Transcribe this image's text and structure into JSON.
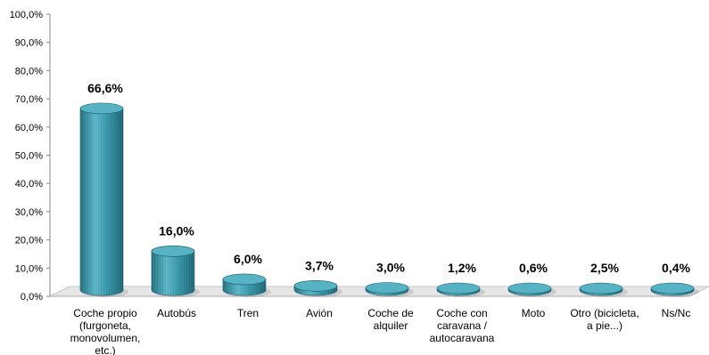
{
  "chart_data": {
    "type": "bar",
    "title": "",
    "xlabel": "",
    "ylabel": "",
    "ylim": [
      0,
      100
    ],
    "yticks": [
      "0,0%",
      "10,0%",
      "20,0%",
      "30,0%",
      "40,0%",
      "50,0%",
      "60,0%",
      "70,0%",
      "80,0%",
      "90,0%",
      "100,0%"
    ],
    "categories": [
      [
        "Coche propio",
        "(furgoneta,",
        "monovolumen,",
        "etc.)"
      ],
      [
        "Autobús"
      ],
      [
        "Tren"
      ],
      [
        "Avión"
      ],
      [
        "Coche de",
        "alquiler"
      ],
      [
        "Coche con",
        "caravana /",
        "autocaravana"
      ],
      [
        "Moto"
      ],
      [
        "Otro (bicicleta,",
        "a pie...)"
      ],
      [
        "Ns/Nc"
      ]
    ],
    "values": [
      66.6,
      16.0,
      6.0,
      3.7,
      3.0,
      1.2,
      0.6,
      2.5,
      0.4
    ],
    "data_labels": [
      "66,6%",
      "16,0%",
      "6,0%",
      "3,7%",
      "3,0%",
      "1,2%",
      "0,6%",
      "2,5%",
      "0,4%"
    ],
    "bar_color": "#2e8fa3",
    "bar_color_light": "#57b3c4",
    "bar_color_dark": "#1d6d7d",
    "floor_color": "#e6e6e6",
    "grid": false,
    "legend": "none"
  }
}
